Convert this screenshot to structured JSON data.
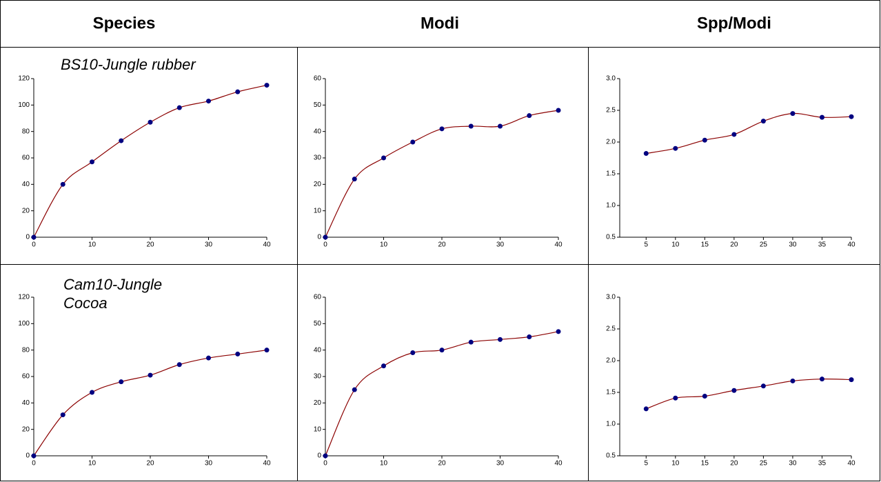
{
  "headers": [
    "Species",
    "Modi",
    "Spp/Modi"
  ],
  "chart_data": [
    {
      "type": "line",
      "annotation": [
        "BS10-Jungle rubber"
      ],
      "x": [
        0,
        5,
        10,
        15,
        20,
        25,
        30,
        35,
        40
      ],
      "values": [
        0,
        40,
        57,
        73,
        87,
        98,
        103,
        110,
        115
      ],
      "line_color": "#8b0000",
      "marker_color": "#000080",
      "xlim": [
        0,
        40
      ],
      "xticks": [
        0,
        10,
        20,
        30,
        40
      ],
      "ylim": [
        0,
        120
      ],
      "yticks": [
        0,
        20,
        40,
        60,
        80,
        100,
        120
      ]
    },
    {
      "type": "line",
      "x": [
        0,
        5,
        10,
        15,
        20,
        25,
        30,
        35,
        40
      ],
      "values": [
        0,
        22,
        30,
        36,
        41,
        42,
        42,
        46,
        48
      ],
      "line_color": "#8b0000",
      "marker_color": "#000080",
      "xlim": [
        0,
        40
      ],
      "xticks": [
        0,
        10,
        20,
        30,
        40
      ],
      "ylim": [
        0,
        60
      ],
      "yticks": [
        0,
        10,
        20,
        30,
        40,
        50,
        60
      ]
    },
    {
      "type": "line",
      "x": [
        5,
        10,
        15,
        20,
        25,
        30,
        35,
        40
      ],
      "values": [
        1.82,
        1.9,
        2.03,
        2.12,
        2.33,
        2.45,
        2.39,
        2.4
      ],
      "line_color": "#8b0000",
      "marker_color": "#000080",
      "xlim": [
        0.5,
        40
      ],
      "xticks": [
        5,
        10,
        15,
        20,
        25,
        30,
        35,
        40
      ],
      "ylim": [
        0.5,
        3
      ],
      "yticks": [
        0.5,
        {
          "value": 1,
          "label": "1.0"
        },
        1.5,
        {
          "value": 2,
          "label": "2.0"
        },
        2.5,
        {
          "value": 3,
          "label": "3.0"
        }
      ]
    },
    {
      "type": "line",
      "annotation": [
        "Cam10-Jungle",
        "Cocoa"
      ],
      "x": [
        0,
        5,
        10,
        15,
        20,
        25,
        30,
        35,
        40
      ],
      "values": [
        0,
        31,
        48,
        56,
        61,
        69,
        74,
        77,
        80
      ],
      "line_color": "#8b0000",
      "marker_color": "#000080",
      "xlim": [
        0,
        40
      ],
      "xticks": [
        0,
        10,
        20,
        30,
        40
      ],
      "ylim": [
        0,
        120
      ],
      "yticks": [
        0,
        20,
        40,
        60,
        80,
        100,
        120
      ]
    },
    {
      "type": "line",
      "x": [
        0,
        5,
        10,
        15,
        20,
        25,
        30,
        35,
        40
      ],
      "values": [
        0,
        25,
        34,
        39,
        40,
        43,
        44,
        45,
        47
      ],
      "line_color": "#8b0000",
      "marker_color": "#000080",
      "xlim": [
        0,
        40
      ],
      "xticks": [
        0,
        10,
        20,
        30,
        40
      ],
      "ylim": [
        0,
        60
      ],
      "yticks": [
        0,
        10,
        20,
        30,
        40,
        50,
        60
      ]
    },
    {
      "type": "line",
      "x": [
        5,
        10,
        15,
        20,
        25,
        30,
        35,
        40
      ],
      "values": [
        1.24,
        1.41,
        1.44,
        1.53,
        1.6,
        1.68,
        1.71,
        1.7
      ],
      "line_color": "#8b0000",
      "marker_color": "#000080",
      "xlim": [
        0.5,
        40
      ],
      "xticks": [
        5,
        10,
        15,
        20,
        25,
        30,
        35,
        40
      ],
      "ylim": [
        0.5,
        3
      ],
      "yticks": [
        0.5,
        {
          "value": 1,
          "label": "1.0"
        },
        1.5,
        {
          "value": 2,
          "label": "2.0"
        },
        2.5,
        {
          "value": 3,
          "label": "3.0"
        }
      ]
    }
  ]
}
